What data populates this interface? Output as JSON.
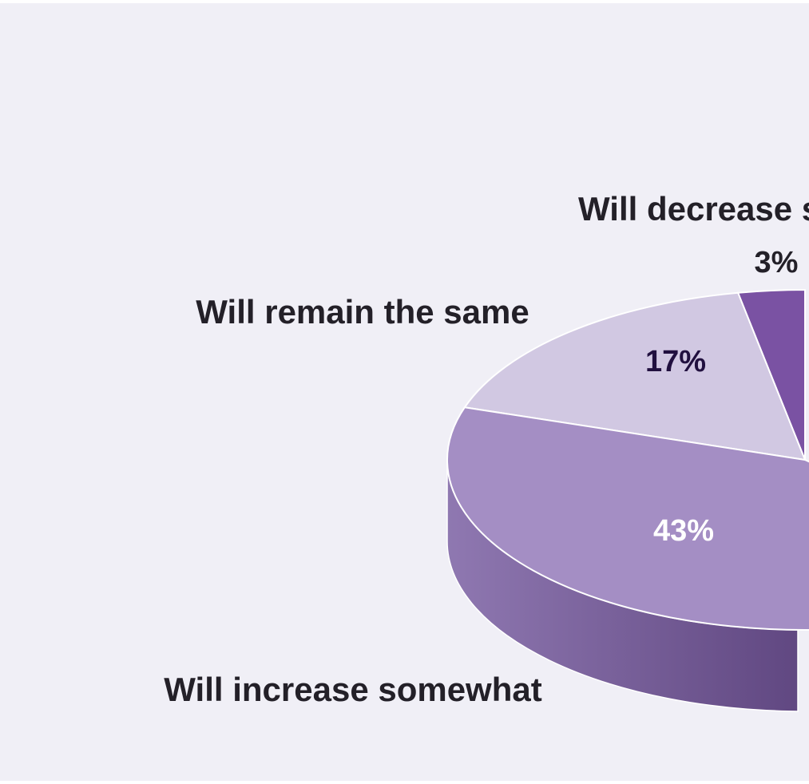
{
  "chart_data": {
    "type": "pie",
    "style": "3d",
    "title": "",
    "slices": [
      {
        "label": "Will decrease somewhat",
        "display_label": "Will decrease s",
        "value": 3,
        "value_label": "3%",
        "color": "#7a52a3",
        "label_color": "#232028"
      },
      {
        "label": "Will remain the same",
        "display_label": "Will remain the same",
        "value": 17,
        "value_label": "17%",
        "color": "#d1c8e2",
        "label_color": "#21103f"
      },
      {
        "label": "Will increase somewhat",
        "display_label": "Will increase somewhat",
        "value": 43,
        "value_label": "43%",
        "color": "#a48ec4",
        "label_color": "#ffffff"
      }
    ]
  },
  "colors": {
    "background": "#f0eff6",
    "side_light": "#8f78b1",
    "side_dark": "#5f4680",
    "edge": "#ffffff"
  }
}
